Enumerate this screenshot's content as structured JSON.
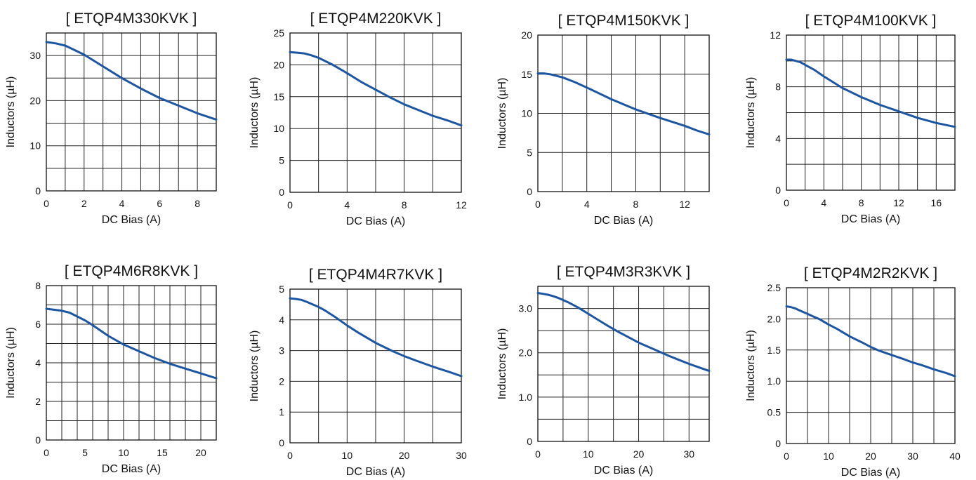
{
  "accent_color": "#1c56a3",
  "chart_data": [
    {
      "type": "line",
      "title": "[ ETQP4M330KVK ]",
      "xlabel": "DC Bias (A)",
      "ylabel": "Inductors (µH)",
      "xlim": [
        0,
        9
      ],
      "ylim": [
        0,
        35
      ],
      "xticks": [
        0,
        2,
        4,
        6,
        8
      ],
      "xtick_labels": [
        "0",
        "2",
        "4",
        "6",
        "8"
      ],
      "yticks": [
        0,
        10,
        20,
        30
      ],
      "ytick_labels": [
        "0",
        "10",
        "20",
        "30"
      ],
      "xgrid": [
        0,
        1,
        2,
        3,
        4,
        5,
        6,
        7,
        8,
        9
      ],
      "ygrid": [
        0,
        5,
        10,
        15,
        20,
        25,
        30,
        35
      ],
      "series": [
        {
          "x": [
            0,
            0.5,
            1,
            1.5,
            2,
            3,
            4,
            5,
            6,
            7,
            8,
            9
          ],
          "y": [
            33,
            32.7,
            32.2,
            31.2,
            30.2,
            27.6,
            25,
            22.7,
            20.6,
            18.9,
            17.2,
            15.8
          ]
        }
      ]
    },
    {
      "type": "line",
      "title": "[ ETQP4M220KVK ]",
      "xlabel": "DC Bias (A)",
      "ylabel": "Inductors (µH)",
      "xlim": [
        0,
        12
      ],
      "ylim": [
        0,
        25
      ],
      "xticks": [
        0,
        4,
        8,
        12
      ],
      "xtick_labels": [
        "0",
        "4",
        "8",
        "12"
      ],
      "yticks": [
        0,
        5,
        10,
        15,
        20,
        25
      ],
      "ytick_labels": [
        "0",
        "5",
        "10",
        "15",
        "20",
        "25"
      ],
      "xgrid": [
        0,
        2,
        4,
        6,
        8,
        10,
        12
      ],
      "ygrid": [
        0,
        5,
        10,
        15,
        20,
        25
      ],
      "series": [
        {
          "x": [
            0,
            0.5,
            1,
            1.5,
            2,
            3,
            4,
            5,
            6,
            7,
            8,
            9,
            10,
            11,
            12
          ],
          "y": [
            22,
            21.9,
            21.8,
            21.5,
            21.1,
            20,
            18.7,
            17.3,
            16.1,
            14.9,
            13.8,
            12.9,
            12,
            11.3,
            10.5
          ]
        }
      ]
    },
    {
      "type": "line",
      "title": "[ ETQP4M150KVK ]",
      "xlabel": "DC Bias (A)",
      "ylabel": "Inductors (µH)",
      "xlim": [
        0,
        14
      ],
      "ylim": [
        0,
        20
      ],
      "xticks": [
        0,
        4,
        8,
        12
      ],
      "xtick_labels": [
        "0",
        "4",
        "8",
        "12"
      ],
      "yticks": [
        0,
        5,
        10,
        15,
        20
      ],
      "ytick_labels": [
        "0",
        "5",
        "10",
        "15",
        "20"
      ],
      "xgrid": [
        0,
        2,
        4,
        6,
        8,
        10,
        12,
        14
      ],
      "ygrid": [
        0,
        5,
        10,
        15,
        20
      ],
      "series": [
        {
          "x": [
            0,
            0.5,
            1,
            2,
            3,
            4,
            6,
            8,
            10,
            12,
            13,
            14
          ],
          "y": [
            15.1,
            15.1,
            15,
            14.6,
            14,
            13.3,
            11.8,
            10.5,
            9.4,
            8.4,
            7.8,
            7.3
          ]
        }
      ]
    },
    {
      "type": "line",
      "title": "[ ETQP4M100KVK ]",
      "xlabel": "DC Bias (A)",
      "ylabel": "Inductors (µH)",
      "xlim": [
        0,
        18
      ],
      "ylim": [
        0,
        12
      ],
      "xticks": [
        0,
        4,
        8,
        12,
        16
      ],
      "xtick_labels": [
        "0",
        "4",
        "8",
        "12",
        "16"
      ],
      "yticks": [
        0,
        4,
        8,
        12
      ],
      "ytick_labels": [
        "0",
        "4",
        "8",
        "12"
      ],
      "xgrid": [
        0,
        2,
        4,
        6,
        8,
        10,
        12,
        14,
        16,
        18
      ],
      "ygrid": [
        0,
        2,
        4,
        6,
        8,
        10,
        12
      ],
      "series": [
        {
          "x": [
            0,
            0.5,
            1,
            1.5,
            2,
            3,
            4,
            6,
            8,
            10,
            12,
            14,
            16,
            18
          ],
          "y": [
            10.1,
            10.1,
            10,
            9.9,
            9.7,
            9.3,
            8.8,
            7.9,
            7.2,
            6.6,
            6.1,
            5.6,
            5.2,
            4.9
          ]
        }
      ]
    },
    {
      "type": "line",
      "title": "[ ETQP4M6R8KVK ]",
      "xlabel": "DC Bias (A)",
      "ylabel": "Inductors (µH)",
      "xlim": [
        0,
        22
      ],
      "ylim": [
        0,
        8
      ],
      "xticks": [
        0,
        5,
        10,
        15,
        20
      ],
      "xtick_labels": [
        "0",
        "5",
        "10",
        "15",
        "20"
      ],
      "yticks": [
        0,
        2,
        4,
        6,
        8
      ],
      "ytick_labels": [
        "0",
        "2",
        "4",
        "6",
        "8"
      ],
      "xgrid": [
        0,
        2,
        4,
        6,
        8,
        10,
        12,
        14,
        16,
        18,
        20,
        22
      ],
      "ygrid": [
        0,
        1,
        2,
        3,
        4,
        5,
        6,
        7,
        8
      ],
      "series": [
        {
          "x": [
            0,
            1,
            2,
            3,
            4,
            5,
            6,
            8,
            10,
            12,
            14,
            16,
            18,
            20,
            22
          ],
          "y": [
            6.8,
            6.75,
            6.7,
            6.6,
            6.4,
            6.2,
            5.95,
            5.4,
            4.95,
            4.6,
            4.25,
            3.95,
            3.7,
            3.45,
            3.2
          ]
        }
      ]
    },
    {
      "type": "line",
      "title": "[ ETQP4M4R7KVK ]",
      "xlabel": "DC Bias (A)",
      "ylabel": "Inductors (µH)",
      "xlim": [
        0,
        30
      ],
      "ylim": [
        0,
        5
      ],
      "xticks": [
        0,
        10,
        20,
        30
      ],
      "xtick_labels": [
        "0",
        "10",
        "20",
        "30"
      ],
      "yticks": [
        0,
        1,
        2,
        3,
        4,
        5
      ],
      "ytick_labels": [
        "0",
        "1",
        "2",
        "3",
        "4",
        "5"
      ],
      "xgrid": [
        0,
        5,
        10,
        15,
        20,
        25,
        30
      ],
      "ygrid": [
        0,
        1,
        2,
        3,
        4,
        5
      ],
      "series": [
        {
          "x": [
            0,
            1,
            2,
            3,
            4,
            5,
            6,
            8,
            10,
            12,
            15,
            18,
            20,
            22,
            25,
            28,
            30
          ],
          "y": [
            4.7,
            4.68,
            4.65,
            4.58,
            4.5,
            4.42,
            4.32,
            4.08,
            3.82,
            3.58,
            3.25,
            2.98,
            2.82,
            2.68,
            2.48,
            2.3,
            2.17
          ]
        }
      ]
    },
    {
      "type": "line",
      "title": "[ ETQP4M3R3KVK ]",
      "xlabel": "DC Bias (A)",
      "ylabel": "Inductors (µH)",
      "xlim": [
        0,
        34
      ],
      "ylim": [
        0,
        3.5
      ],
      "xticks": [
        0,
        10,
        20,
        30
      ],
      "xtick_labels": [
        "0",
        "10",
        "20",
        "30"
      ],
      "yticks": [
        0,
        1,
        2,
        3
      ],
      "ytick_labels": [
        "0",
        "1.0",
        "2.0",
        "3.0"
      ],
      "xgrid": [
        0,
        5,
        10,
        15,
        20,
        25,
        30
      ],
      "ygrid": [
        0,
        0.5,
        1,
        1.5,
        2,
        2.5,
        3,
        3.5
      ],
      "series": [
        {
          "x": [
            0,
            1,
            2,
            3,
            4,
            6,
            8,
            10,
            12,
            14,
            16,
            18,
            20,
            22,
            24,
            26,
            28,
            30,
            32,
            34
          ],
          "y": [
            3.35,
            3.33,
            3.31,
            3.28,
            3.24,
            3.14,
            3.02,
            2.88,
            2.74,
            2.6,
            2.47,
            2.35,
            2.23,
            2.13,
            2.03,
            1.93,
            1.84,
            1.75,
            1.67,
            1.59
          ]
        }
      ]
    },
    {
      "type": "line",
      "title": "[ ETQP4M2R2KVK ]",
      "xlabel": "DC Bias (A)",
      "ylabel": "Inductors (µH)",
      "xlim": [
        0,
        40
      ],
      "ylim": [
        0,
        2.5
      ],
      "xticks": [
        0,
        10,
        20,
        30,
        40
      ],
      "xtick_labels": [
        "0",
        "10",
        "20",
        "30",
        "40"
      ],
      "yticks": [
        0,
        0.5,
        1,
        1.5,
        2,
        2.5
      ],
      "ytick_labels": [
        "0",
        "0.5",
        "1.0",
        "1.5",
        "2.0",
        "2.5"
      ],
      "xgrid": [
        0,
        5,
        10,
        15,
        20,
        25,
        30,
        35,
        40
      ],
      "ygrid": [
        0,
        0.5,
        1,
        1.5,
        2,
        2.5
      ],
      "series": [
        {
          "x": [
            0,
            1,
            2,
            3,
            4,
            5,
            6,
            8,
            10,
            12,
            15,
            18,
            20,
            22,
            25,
            28,
            30,
            32,
            35,
            38,
            40
          ],
          "y": [
            2.2,
            2.19,
            2.17,
            2.14,
            2.11,
            2.08,
            2.05,
            1.99,
            1.91,
            1.84,
            1.72,
            1.62,
            1.55,
            1.49,
            1.42,
            1.35,
            1.3,
            1.26,
            1.19,
            1.13,
            1.08
          ]
        }
      ]
    }
  ]
}
